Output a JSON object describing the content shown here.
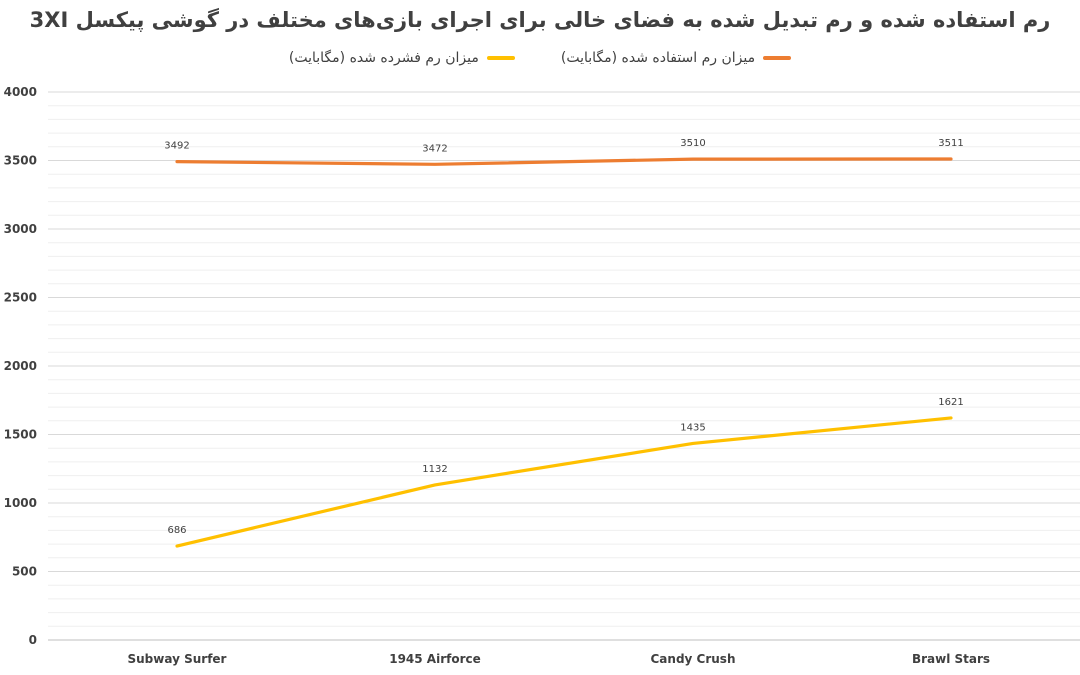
{
  "chart_data": {
    "type": "line",
    "title": "رم استفاده شده و رم تبدیل شده به فضای خالی برای اجرای بازی‌های مختلف در گوشی پیکسل 3XI",
    "categories": [
      "Subway Surfer",
      "1945 Airforce",
      "Candy Crush",
      "Brawl Stars"
    ],
    "series": [
      {
        "name": "میزان رم استفاده شده (مگابایت)",
        "values": [
          3492,
          3472,
          3510,
          3511
        ],
        "color": "#ED7D31"
      },
      {
        "name": "میزان رم فشرده شده (مگابایت)",
        "values": [
          686,
          1132,
          1435,
          1621
        ],
        "color": "#FFC000"
      }
    ],
    "ylim": [
      0,
      4000
    ],
    "yticks": [
      "0",
      "500",
      "1000",
      "1500",
      "2000",
      "2500",
      "3000",
      "3500",
      "4000"
    ],
    "xlabel": "",
    "ylabel": "",
    "grid": true,
    "legend_position": "top"
  }
}
